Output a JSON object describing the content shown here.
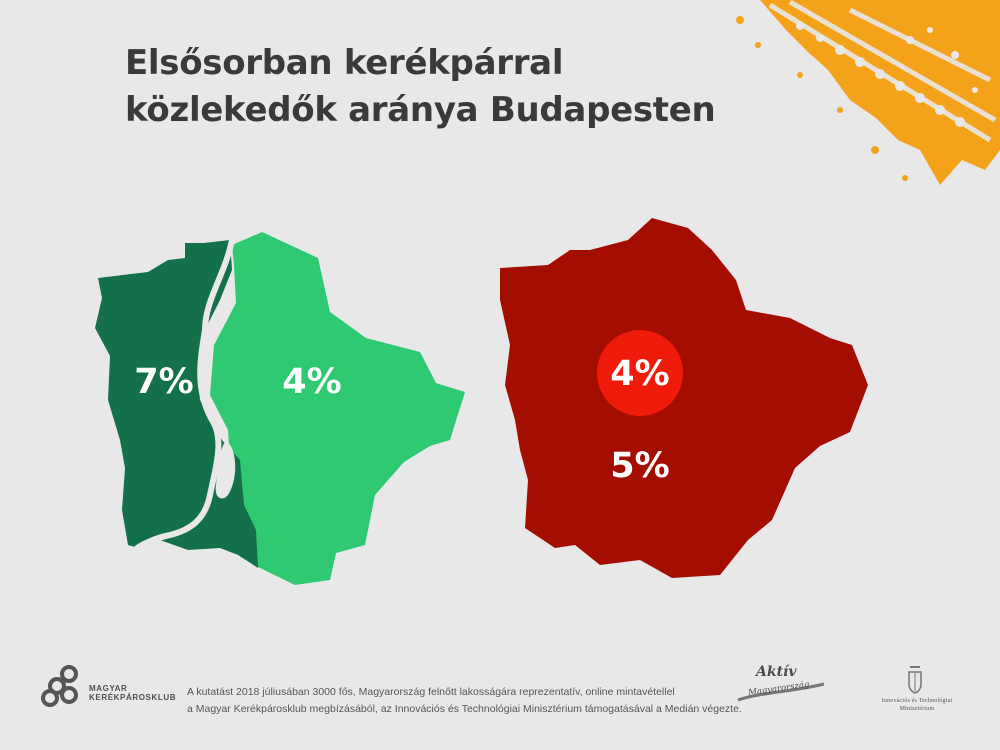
{
  "title": {
    "line1": "Elsősorban kerékpárral",
    "line2": "közlekedők aránya Budapesten"
  },
  "maps": {
    "left": {
      "buda_value": "7%",
      "pest_value": "4%",
      "buda_color": "#14704a",
      "pest_color": "#2ec970"
    },
    "right": {
      "inner_value": "4%",
      "outer_value": "5%",
      "city_color": "#a30e00",
      "inner_circle_color": "#f01a0a"
    }
  },
  "footer": {
    "org_name_line1": "MAGYAR",
    "org_name_line2": "KERÉKPÁROSKLUB",
    "note_line1": "A kutatást 2018 júliusában 3000 fős, Magyarország felnőtt lakosságára reprezentatív, online mintavétellel",
    "note_line2": "a Magyar Kerékpárosklub megbízásából, az Innovációs és Technológiai Minisztérium támogatásával a Medián végezte.",
    "aktiv_line1": "Aktív",
    "aktiv_line2": "Magyarország",
    "ministry_line1": "Innovációs és Technológiai",
    "ministry_line2": "Minisztérium"
  },
  "colors": {
    "background": "#e8e8e8",
    "accent_orange": "#f4a21a",
    "title_text": "#3a3a3a"
  }
}
